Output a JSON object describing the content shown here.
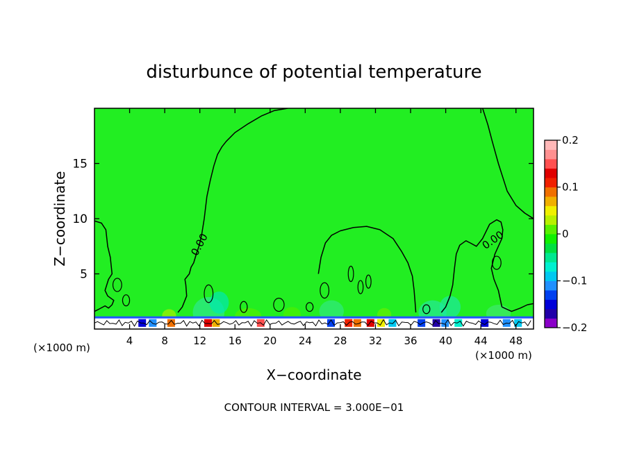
{
  "chart_data": {
    "type": "heatmap",
    "title": "disturbunce of potential temperature",
    "xlabel": "X−coordinate",
    "ylabel": "Z−coordinate",
    "x_unit_left": "(×1000 m)",
    "x_unit_right": "(×1000 m)",
    "xlim": [
      0,
      50
    ],
    "ylim": [
      0,
      20
    ],
    "xticks": [
      4,
      8,
      12,
      16,
      20,
      24,
      28,
      32,
      36,
      40,
      44,
      48
    ],
    "yticks": [
      5,
      10,
      15
    ],
    "contour_label": "0.00",
    "footer": "CONTOUR INTERVAL = 3.000E−01",
    "background_value": 0.0,
    "colorbar": {
      "min": -0.2,
      "max": 0.2,
      "tick_values": [
        0.2,
        0.1,
        0,
        -0.1,
        -0.2
      ],
      "tick_labels": [
        "0.2",
        "0.1",
        "0",
        "−0.1",
        "−0.2"
      ],
      "colors": [
        "#8a00c8",
        "#2200a8",
        "#0000d8",
        "#0040f0",
        "#2090ff",
        "#00c8f0",
        "#00f0d0",
        "#00e890",
        "#00e040",
        "#10f000",
        "#58f000",
        "#b8f000",
        "#f0f000",
        "#f0b000",
        "#f07000",
        "#f02000",
        "#e00000",
        "#ff5050",
        "#ff9090",
        "#ffb8b8"
      ]
    },
    "contour_zero": [
      {
        "x": [
          0,
          0.8,
          1.3,
          1.5,
          1.8,
          2.0,
          1.6,
          1.2,
          1.5,
          2.2,
          2.0,
          1.6,
          1.2,
          0.5,
          0
        ],
        "y": [
          9.8,
          9.6,
          9.0,
          7.5,
          6.5,
          5.0,
          4.5,
          3.5,
          3.0,
          2.6,
          2.2,
          1.9,
          2.1,
          1.8,
          1.6
        ]
      },
      {
        "x": [
          9.5,
          10,
          10.5,
          10.4,
          10.3,
          10.8,
          11,
          11.3,
          11.6,
          11.9,
          12.2,
          12.5,
          12.8,
          13.2,
          13.6,
          14.0,
          14.5,
          15.0,
          16,
          17.5,
          19,
          20.5,
          22
        ],
        "y": [
          1.5,
          2.0,
          3.0,
          4.0,
          4.5,
          5.0,
          5.6,
          6.0,
          6.8,
          7.5,
          8.5,
          10.0,
          12.0,
          13.5,
          14.8,
          15.8,
          16.5,
          17.0,
          17.8,
          18.6,
          19.3,
          19.8,
          20
        ]
      },
      {
        "x": [
          25.5,
          25.8,
          26.3,
          27,
          28,
          29.5,
          31,
          32.5,
          34,
          35,
          35.7,
          36.2,
          36.4,
          36.5,
          36.6
        ],
        "y": [
          5.0,
          6.5,
          7.8,
          8.5,
          8.9,
          9.2,
          9.3,
          9.0,
          8.2,
          7.0,
          6.0,
          4.8,
          3.5,
          2.5,
          1.5
        ]
      },
      {
        "x": [
          39.5,
          40,
          40.5,
          40.8,
          41.0,
          41.2,
          41.6,
          42.3,
          42.8,
          43.5,
          44.2,
          45.0,
          45.8,
          46.3,
          46.5,
          46.4,
          46.0,
          45.6,
          45.2,
          45.5,
          46.0,
          46.4
        ],
        "y": [
          1.5,
          2.0,
          3.0,
          4.0,
          5.5,
          6.8,
          7.6,
          8.0,
          7.8,
          7.5,
          8.2,
          9.5,
          9.9,
          9.7,
          9.0,
          8.2,
          7.5,
          6.8,
          5.5,
          4.5,
          3.5,
          2.0
        ]
      },
      {
        "x": [
          44.2,
          44.8,
          45.3,
          46.0,
          47.0,
          48.0,
          49.0,
          50
        ],
        "y": [
          20,
          18.5,
          17.0,
          15.0,
          12.5,
          11.2,
          10.5,
          10.0
        ]
      },
      {
        "x": [
          46.4,
          47.5,
          48.5,
          49.3,
          50
        ],
        "y": [
          2.0,
          1.6,
          1.9,
          2.2,
          2.3
        ]
      }
    ]
  }
}
